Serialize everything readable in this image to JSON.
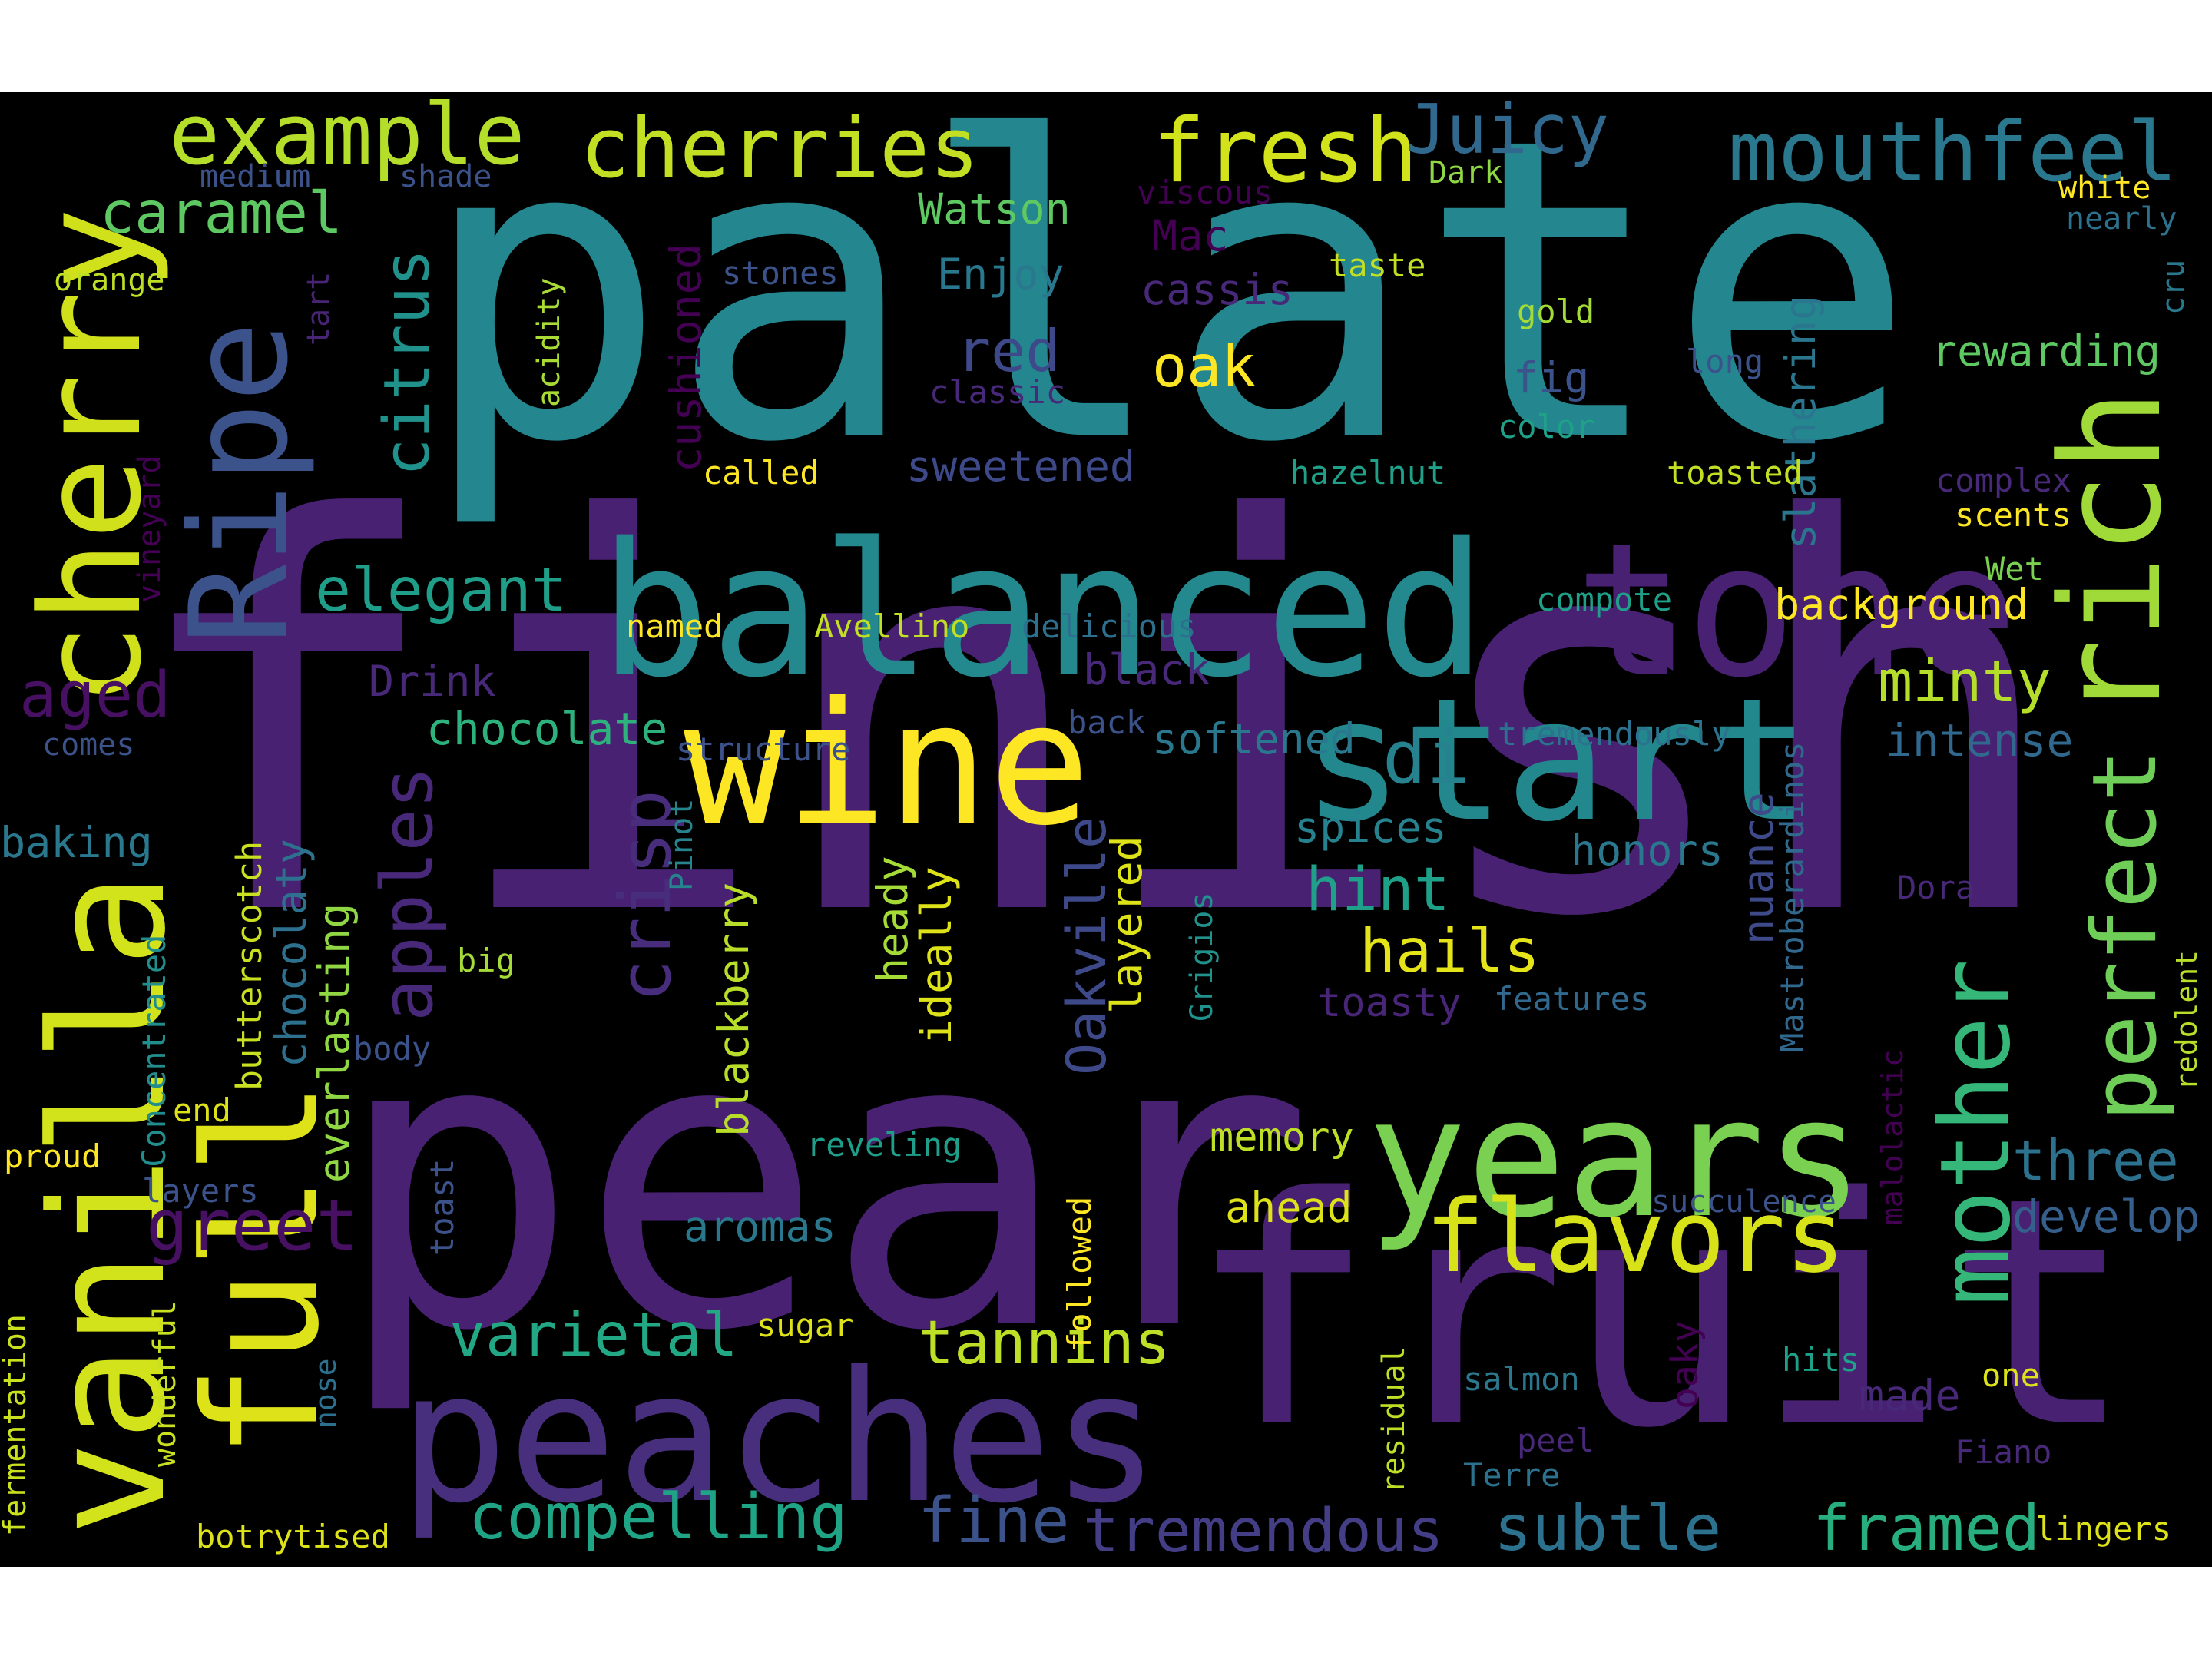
{
  "cloud": {
    "words": [
      {
        "text": "finish",
        "color": "#482173"
      },
      {
        "text": "palate",
        "color": "#24868e"
      },
      {
        "text": "pear",
        "color": "#482173"
      },
      {
        "text": "fruit",
        "color": "#482173"
      },
      {
        "text": "balanced",
        "color": "#23898e"
      },
      {
        "text": "tone",
        "color": "#482173"
      },
      {
        "text": "peaches",
        "color": "#472f7d"
      },
      {
        "text": "wine",
        "color": "#fde725"
      },
      {
        "text": "start",
        "color": "#23888e"
      },
      {
        "text": "years",
        "color": "#7ad151"
      },
      {
        "text": "cherry",
        "color": "#d0e11c"
      },
      {
        "text": "vanilla",
        "color": "#d2e21b"
      },
      {
        "text": "full",
        "color": "#dde318"
      },
      {
        "text": "Ripe",
        "color": "#3b528b"
      },
      {
        "text": "rich",
        "color": "#a0da39"
      },
      {
        "text": "mother",
        "color": "#35b779"
      },
      {
        "text": "flavors",
        "color": "#d8e219"
      },
      {
        "text": "perfect",
        "color": "#6ece58"
      },
      {
        "text": "example",
        "color": "#b5de2b"
      },
      {
        "text": "cherries",
        "color": "#c2df23"
      },
      {
        "text": "fresh",
        "color": "#d2e21b"
      },
      {
        "text": "mouthfeel",
        "color": "#2a788e"
      },
      {
        "text": "Juicy",
        "color": "#31688e"
      },
      {
        "text": "caramel",
        "color": "#5ec962"
      },
      {
        "text": "citrus",
        "color": "#21918c"
      },
      {
        "text": "elegant",
        "color": "#1f9e89"
      },
      {
        "text": "apples",
        "color": "#482878"
      },
      {
        "text": "crisp",
        "color": "#472d7b"
      },
      {
        "text": "aged",
        "color": "#471063"
      },
      {
        "text": "greet",
        "color": "#471063"
      },
      {
        "text": "compelling",
        "color": "#20a486"
      },
      {
        "text": "fine",
        "color": "#3b528b"
      },
      {
        "text": "tremendous",
        "color": "#433e85"
      },
      {
        "text": "subtle",
        "color": "#2c728e"
      },
      {
        "text": "framed",
        "color": "#29af7f"
      },
      {
        "text": "varietal",
        "color": "#22a884"
      },
      {
        "text": "tannins",
        "color": "#bddf26"
      },
      {
        "text": "chocolate",
        "color": "#2db27d"
      },
      {
        "text": "hails",
        "color": "#e5e419"
      },
      {
        "text": "hint",
        "color": "#1fa088"
      },
      {
        "text": "di",
        "color": "#26828e"
      },
      {
        "text": "oak",
        "color": "#fde725"
      },
      {
        "text": "red",
        "color": "#3e4989"
      },
      {
        "text": "three",
        "color": "#2c728e"
      },
      {
        "text": "develop",
        "color": "#355f8d"
      },
      {
        "text": "minty",
        "color": "#b5de2b"
      },
      {
        "text": "intense",
        "color": "#31688e"
      },
      {
        "text": "background",
        "color": "#fde725"
      },
      {
        "text": "rewarding",
        "color": "#5ec962"
      },
      {
        "text": "Oakville",
        "color": "#3e4989"
      },
      {
        "text": "blackberry",
        "color": "#b8de29"
      },
      {
        "text": "everlasting",
        "color": "#90d743"
      },
      {
        "text": "chocolaty",
        "color": "#2d718e"
      },
      {
        "text": "butterscotch",
        "color": "#c8e020"
      },
      {
        "text": "layered",
        "color": "#dde318"
      },
      {
        "text": "heady",
        "color": "#a5db36"
      },
      {
        "text": "ideally",
        "color": "#dde318"
      },
      {
        "text": "nuance",
        "color": "#3e4a89"
      },
      {
        "text": "slathering",
        "color": "#2a768e"
      },
      {
        "text": "cushioned",
        "color": "#440154"
      },
      {
        "text": "Concentrated",
        "color": "#228d8d"
      },
      {
        "text": "vineyard",
        "color": "#440154"
      },
      {
        "text": "Mastroberardinos",
        "color": "#31688e"
      },
      {
        "text": "redolent",
        "color": "#b8de29"
      },
      {
        "text": "malolactic",
        "color": "#440154"
      },
      {
        "text": "followed",
        "color": "#fde725"
      },
      {
        "text": "toast",
        "color": "#3b528b"
      },
      {
        "text": "residual",
        "color": "#bddf26"
      },
      {
        "text": "oaky",
        "color": "#440154"
      },
      {
        "text": "acidity",
        "color": "#a8db34"
      },
      {
        "text": "tart",
        "color": "#482475"
      },
      {
        "text": "Grigios",
        "color": "#21918c"
      },
      {
        "text": "Pinot",
        "color": "#25848e"
      },
      {
        "text": "wonderful",
        "color": "#c8e020"
      },
      {
        "text": "fermentation",
        "color": "#cae11f"
      },
      {
        "text": "nose",
        "color": "#2d708e"
      },
      {
        "text": "cru",
        "color": "#2a788e"
      },
      {
        "text": "sweetened",
        "color": "#3e4989"
      },
      {
        "text": "softened",
        "color": "#2a788e"
      },
      {
        "text": "spices",
        "color": "#26828e"
      },
      {
        "text": "honors",
        "color": "#2a788e"
      },
      {
        "text": "toasty",
        "color": "#482576"
      },
      {
        "text": "features",
        "color": "#31688e"
      },
      {
        "text": "memory",
        "color": "#bddf26"
      },
      {
        "text": "ahead",
        "color": "#dde318"
      },
      {
        "text": "succulence",
        "color": "#3b528b"
      },
      {
        "text": "aromas",
        "color": "#2a788e"
      },
      {
        "text": "reveling",
        "color": "#1f9e89"
      },
      {
        "text": "Watson",
        "color": "#5ec962"
      },
      {
        "text": "Enjoy",
        "color": "#2a788e"
      },
      {
        "text": "Mac",
        "color": "#440154"
      },
      {
        "text": "cassis",
        "color": "#482878"
      },
      {
        "text": "viscous",
        "color": "#440154"
      },
      {
        "text": "taste",
        "color": "#c2df23"
      },
      {
        "text": "Dark",
        "color": "#8fd744"
      },
      {
        "text": "white",
        "color": "#fde725"
      },
      {
        "text": "nearly",
        "color": "#2c728e"
      },
      {
        "text": "medium",
        "color": "#3b528b"
      },
      {
        "text": "shade",
        "color": "#3b528b"
      },
      {
        "text": "orange",
        "color": "#bddf26"
      },
      {
        "text": "stones",
        "color": "#3b528b"
      },
      {
        "text": "classic",
        "color": "#482878"
      },
      {
        "text": "gold",
        "color": "#a5db36"
      },
      {
        "text": "long",
        "color": "#3b528b"
      },
      {
        "text": "fig",
        "color": "#3b528b"
      },
      {
        "text": "color",
        "color": "#1fa088"
      },
      {
        "text": "called",
        "color": "#fde725"
      },
      {
        "text": "hazelnut",
        "color": "#1fa088"
      },
      {
        "text": "toasted",
        "color": "#c2df23"
      },
      {
        "text": "complex",
        "color": "#482878"
      },
      {
        "text": "scents",
        "color": "#fde725"
      },
      {
        "text": "Wet",
        "color": "#7ad151"
      },
      {
        "text": "compote",
        "color": "#1fa088"
      },
      {
        "text": "named",
        "color": "#fde725"
      },
      {
        "text": "Avellino",
        "color": "#c2df23"
      },
      {
        "text": "delicious",
        "color": "#2d708e"
      },
      {
        "text": "Drink",
        "color": "#482878"
      },
      {
        "text": "black",
        "color": "#482878"
      },
      {
        "text": "back",
        "color": "#3b528b"
      },
      {
        "text": "structure",
        "color": "#3b528b"
      },
      {
        "text": "tremendously",
        "color": "#2c728e"
      },
      {
        "text": "comes",
        "color": "#3b528b"
      },
      {
        "text": "baking",
        "color": "#2a788e"
      },
      {
        "text": "big",
        "color": "#a5db36"
      },
      {
        "text": "body",
        "color": "#3b528b"
      },
      {
        "text": "end",
        "color": "#dde318"
      },
      {
        "text": "proud",
        "color": "#fde725"
      },
      {
        "text": "layers",
        "color": "#3b528b"
      },
      {
        "text": "Dora",
        "color": "#482878"
      },
      {
        "text": "sugar",
        "color": "#dde318"
      },
      {
        "text": "salmon",
        "color": "#2a788e"
      },
      {
        "text": "hits",
        "color": "#1fa088"
      },
      {
        "text": "one",
        "color": "#dde318"
      },
      {
        "text": "made",
        "color": "#482878"
      },
      {
        "text": "peel",
        "color": "#482878"
      },
      {
        "text": "Terre",
        "color": "#2c728e"
      },
      {
        "text": "Fiano",
        "color": "#482878"
      },
      {
        "text": "lingers",
        "color": "#dde318"
      },
      {
        "text": "botrytised",
        "color": "#dde318"
      }
    ]
  }
}
